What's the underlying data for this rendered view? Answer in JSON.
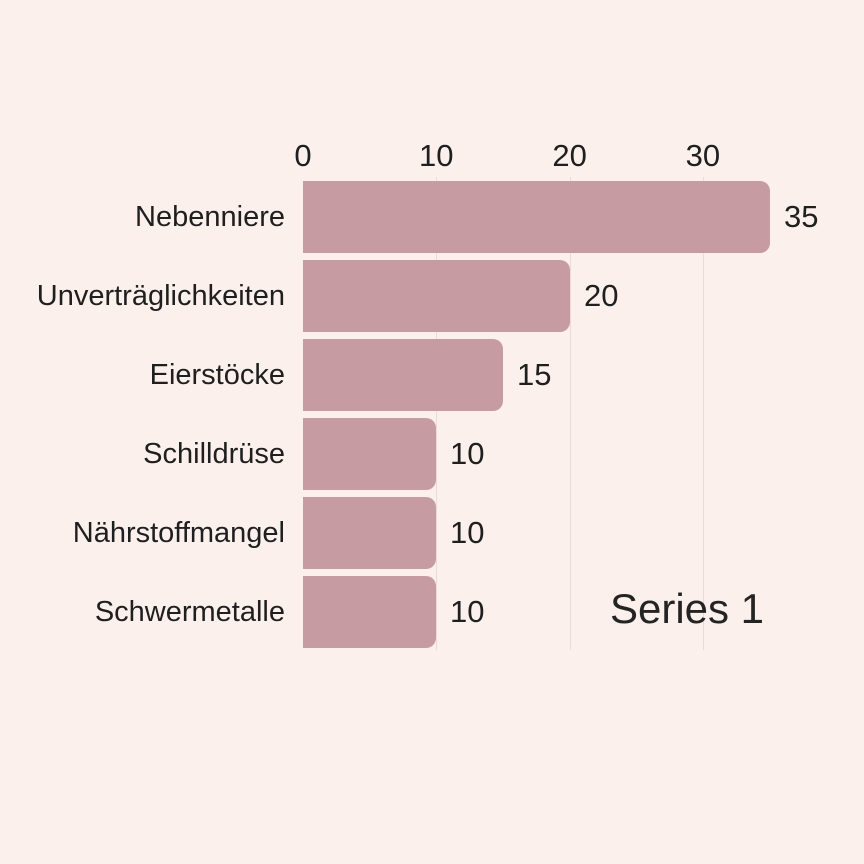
{
  "chart_data": {
    "type": "bar",
    "orientation": "horizontal",
    "title": "",
    "categories": [
      "Nebenniere",
      "Unverträglichkeiten",
      "Eierstöcke",
      "Schilldrüse",
      "Nährstoffmangel",
      "Schwermetalle"
    ],
    "values": [
      35,
      20,
      15,
      10,
      10,
      10
    ],
    "value_labels": [
      "35",
      "20",
      "15",
      "10",
      "10",
      "10"
    ],
    "x_ticks": [
      "0",
      "10",
      "20",
      "30"
    ],
    "x_tick_values": [
      0,
      10,
      20,
      30
    ],
    "xlim": [
      0,
      35
    ],
    "axis_position": "top",
    "grid": "vertical-faint",
    "legend": {
      "series_label": "Series 1",
      "position": "inside-bottom-right"
    },
    "colors": {
      "background": "#fbf0ec",
      "bar": "#c69ba1",
      "gridline": "#e7dcd9",
      "text": "#1f1f1f"
    }
  }
}
